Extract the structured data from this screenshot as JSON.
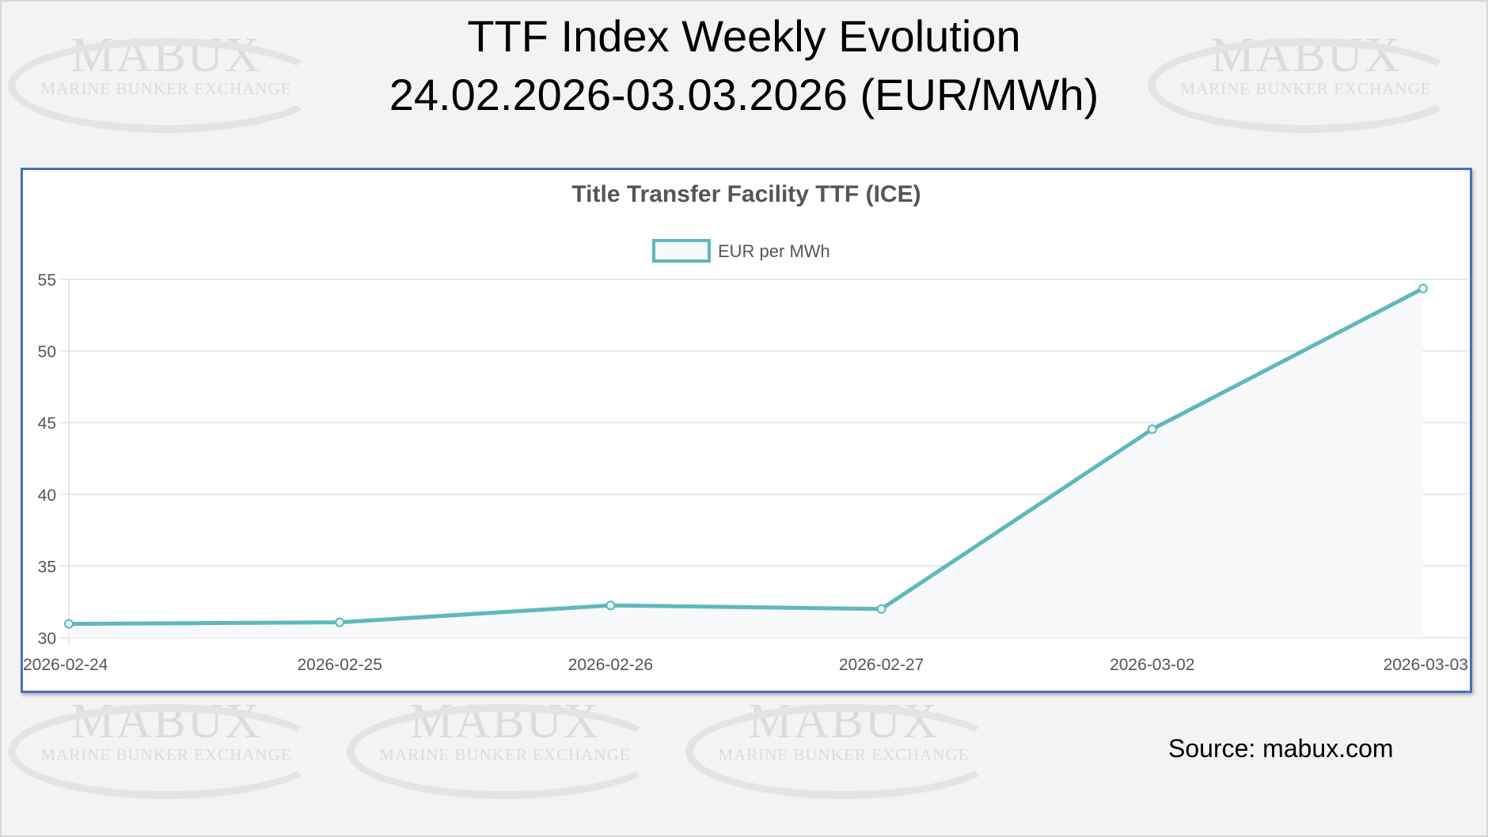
{
  "title_line1": "TTF Index Weekly Evolution",
  "title_line2": "24.02.2026-03.03.2026 (EUR/MWh)",
  "source": "Source: mabux.com",
  "watermark": {
    "brand": "MABUX",
    "tagline": "MARINE BUNKER EXCHANGE"
  },
  "colors": {
    "line": "#5fb8ba",
    "fill": "#f7f9fb",
    "border": "#4a6fc1",
    "grid": "#e6e6e6"
  },
  "chart_data": {
    "type": "line",
    "title": "Title Transfer Facility TTF (ICE)",
    "legend": {
      "position": "top",
      "entries": [
        "EUR per MWh"
      ]
    },
    "categories": [
      "2026-02-24",
      "2026-02-25",
      "2026-02-26",
      "2026-02-27",
      "2026-03-02",
      "2026-03-03"
    ],
    "series": [
      {
        "name": "EUR per MWh",
        "values": [
          30.96,
          31.07,
          32.25,
          32.0,
          44.54,
          54.36
        ]
      }
    ],
    "ylim": [
      30,
      55
    ],
    "yticks": [
      "30",
      "35",
      "40",
      "45",
      "50",
      "55"
    ],
    "grid": true,
    "xlabel": "",
    "ylabel": ""
  }
}
